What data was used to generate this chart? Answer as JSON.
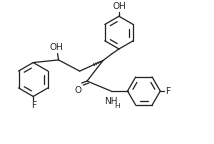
{
  "background": "#ffffff",
  "line_color": "#222222",
  "line_width": 0.9,
  "text_color": "#222222",
  "font_size": 6.5,
  "figsize": [
    2.14,
    1.44
  ],
  "dpi": 100,
  "xlim": [
    0,
    10.5
  ],
  "ylim": [
    0,
    7
  ]
}
